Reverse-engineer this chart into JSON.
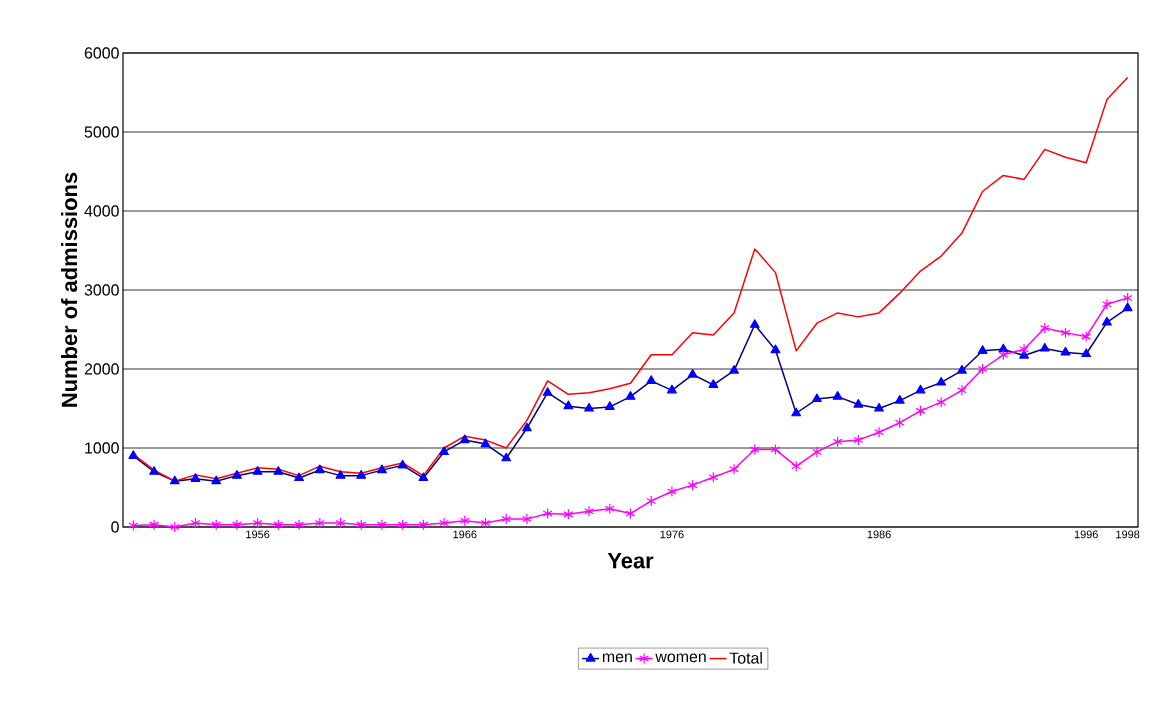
{
  "chart_data": {
    "type": "line",
    "xlabel": "Year",
    "ylabel": "Number of admissions",
    "categories": [
      null,
      null,
      null,
      null,
      null,
      null,
      "1956",
      null,
      null,
      null,
      null,
      null,
      null,
      null,
      null,
      null,
      "1966",
      null,
      null,
      null,
      null,
      null,
      null,
      null,
      null,
      null,
      "1976",
      null,
      null,
      null,
      null,
      null,
      null,
      null,
      null,
      null,
      "1986",
      null,
      null,
      null,
      null,
      null,
      null,
      null,
      null,
      null,
      "1996",
      null,
      "1998"
    ],
    "series": [
      {
        "name": "men",
        "color": "#0000ff",
        "marker": "triangle",
        "values": [
          900,
          700,
          580,
          610,
          580,
          650,
          700,
          700,
          620,
          720,
          650,
          650,
          720,
          780,
          620,
          950,
          1100,
          1050,
          870,
          1250,
          1700,
          1530,
          1500,
          1520,
          1650,
          1850,
          1730,
          1930,
          1800,
          1980,
          2560,
          2240,
          1440,
          1620,
          1650,
          1550,
          1500,
          1600,
          1730,
          1830,
          1980,
          2230,
          2250,
          2170,
          2260,
          2210,
          2190,
          2590,
          2770
        ]
      },
      {
        "name": "women",
        "color": "#ff00ff",
        "marker": "cross",
        "values": [
          20,
          30,
          0,
          50,
          30,
          30,
          50,
          30,
          30,
          50,
          50,
          30,
          30,
          30,
          30,
          50,
          80,
          50,
          100,
          100,
          170,
          160,
          200,
          230,
          170,
          330,
          450,
          530,
          630,
          730,
          980,
          980,
          770,
          950,
          1080,
          1100,
          1200,
          1320,
          1470,
          1580,
          1730,
          2000,
          2180,
          2250,
          2520,
          2460,
          2410,
          2820,
          2900
        ]
      },
      {
        "name": "Total",
        "color": "#ff0000",
        "marker": "none",
        "values": [
          920,
          720,
          580,
          660,
          610,
          680,
          750,
          730,
          650,
          770,
          700,
          680,
          750,
          810,
          650,
          1000,
          1150,
          1100,
          1000,
          1350,
          1850,
          1680,
          1700,
          1750,
          1820,
          2180,
          2180,
          2460,
          2430,
          2710,
          3520,
          3220,
          2230,
          2580,
          2710,
          2660,
          2710,
          2960,
          3240,
          3430,
          3720,
          4250,
          4450,
          4400,
          4780,
          4680,
          4610,
          5410,
          5690
        ]
      }
    ],
    "ylim": [
      0,
      6000
    ],
    "yticks": [
      0,
      1000,
      2000,
      3000,
      4000,
      5000,
      6000
    ],
    "grid": "y",
    "legend": "bottom"
  }
}
